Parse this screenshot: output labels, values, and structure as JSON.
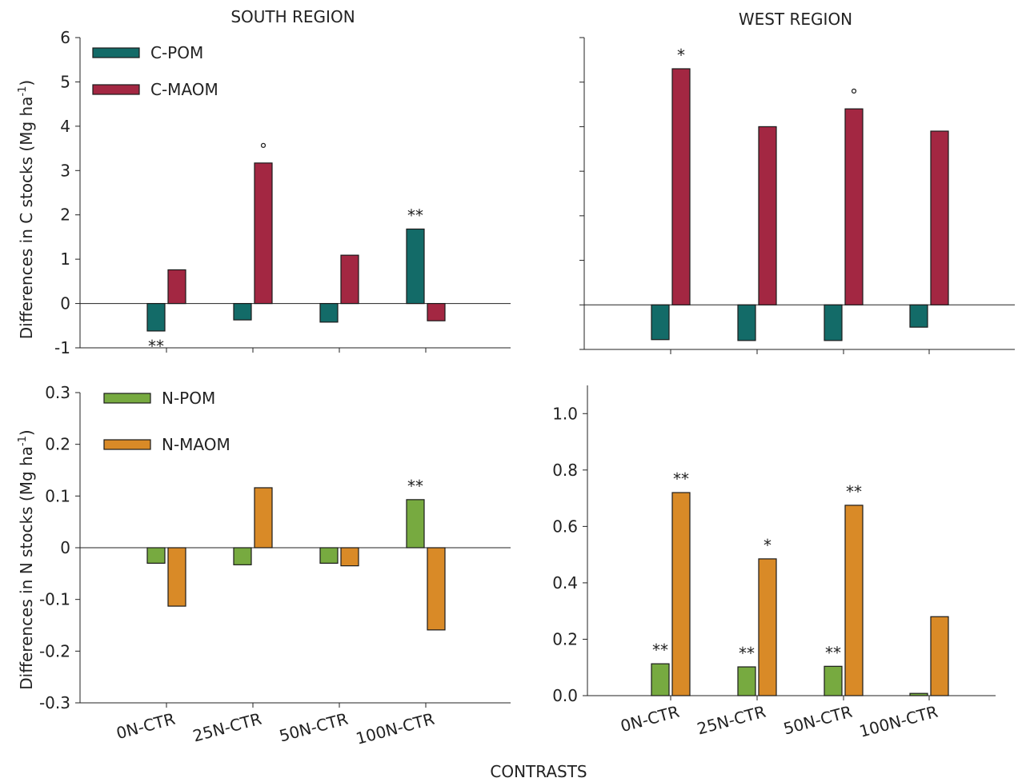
{
  "titles": {
    "south": "SOUTH REGION",
    "west": "WEST REGION",
    "xlabel": "CONTRASTS",
    "ylabel_c": "Differences in C stocks (Mg ha",
    "ylabel_n": "Differences in N stocks  (Mg ha",
    "ylabel_sup": "-1",
    "ylabel_close": ")"
  },
  "colors": {
    "c_pom": "#136b68",
    "c_maom": "#a32742",
    "n_pom": "#77aa40",
    "n_maom": "#d98a27"
  },
  "chart_data": [
    {
      "id": "south-c",
      "type": "bar",
      "region": "SOUTH REGION",
      "categories": [
        "0N-CTR",
        "25N-CTR",
        "50N-CTR",
        "100N-CTR"
      ],
      "ylabel": "Differences in C stocks (Mg ha-1)",
      "ylim": [
        -1,
        6
      ],
      "yticks": [
        "6",
        "5",
        "4",
        "3",
        "2",
        "1",
        "0",
        "-1"
      ],
      "legend": "top-left",
      "series": [
        {
          "name": "C-POM",
          "color": "#136b68",
          "values": [
            -0.62,
            -0.37,
            -0.42,
            1.68
          ],
          "marks": [
            "**",
            "",
            "",
            "**"
          ]
        },
        {
          "name": "C-MAOM",
          "color": "#a32742",
          "values": [
            0.76,
            3.17,
            1.09,
            -0.39
          ],
          "marks": [
            "",
            "°",
            "",
            ""
          ]
        }
      ]
    },
    {
      "id": "west-c",
      "type": "bar",
      "region": "WEST REGION",
      "categories": [
        "0N-CTR",
        "25N-CTR",
        "50N-CTR",
        "100N-CTR"
      ],
      "ylim": [
        -1,
        6
      ],
      "yticks_visible": false,
      "series": [
        {
          "name": "C-POM",
          "color": "#136b68",
          "values": [
            -0.78,
            -0.8,
            -0.8,
            -0.5
          ],
          "marks": [
            "",
            "",
            "",
            ""
          ]
        },
        {
          "name": "C-MAOM",
          "color": "#a32742",
          "values": [
            5.3,
            4.0,
            4.4,
            3.9
          ],
          "marks": [
            "*",
            "",
            "°",
            ""
          ]
        }
      ]
    },
    {
      "id": "south-n",
      "type": "bar",
      "categories": [
        "0N-CTR",
        "25N-CTR",
        "50N-CTR",
        "100N-CTR"
      ],
      "ylabel": "Differences in N stocks  (Mg ha-1)",
      "ylim": [
        -0.3,
        0.3
      ],
      "yticks": [
        "0.3",
        "0.2",
        "0.1",
        "0",
        "-0.1",
        "-0.2",
        "-0.3"
      ],
      "legend": "top-left",
      "series": [
        {
          "name": "N-POM",
          "color": "#77aa40",
          "values": [
            -0.03,
            -0.033,
            -0.03,
            0.093
          ],
          "marks": [
            "",
            "",
            "",
            "**"
          ]
        },
        {
          "name": "N-MAOM",
          "color": "#d98a27",
          "values": [
            -0.113,
            0.116,
            -0.035,
            -0.159
          ],
          "marks": [
            "",
            "",
            "",
            ""
          ]
        }
      ]
    },
    {
      "id": "west-n",
      "type": "bar",
      "categories": [
        "0N-CTR",
        "25N-CTR",
        "50N-CTR",
        "100N-CTR"
      ],
      "ylim": [
        0,
        1.1
      ],
      "yticks": [
        "0.0",
        "0.2",
        "0.4",
        "0.6",
        "0.8",
        "1.0"
      ],
      "series": [
        {
          "name": "N-POM",
          "color": "#77aa40",
          "values": [
            0.113,
            0.102,
            0.104,
            0.008
          ],
          "marks": [
            "**",
            "**",
            "**",
            ""
          ]
        },
        {
          "name": "N-MAOM",
          "color": "#d98a27",
          "values": [
            0.72,
            0.485,
            0.675,
            0.28
          ],
          "marks": [
            "**",
            "*",
            "**",
            ""
          ]
        }
      ]
    }
  ]
}
